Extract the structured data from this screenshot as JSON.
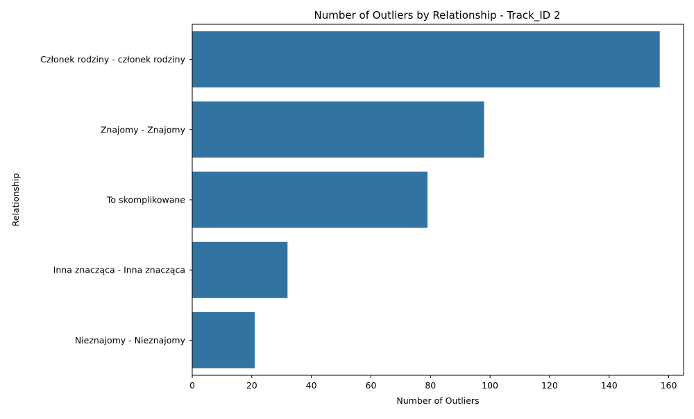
{
  "chart_data": {
    "type": "bar",
    "orientation": "horizontal",
    "title": "Number of Outliers by Relationship - Track_ID 2",
    "xlabel": "Number of Outliers",
    "ylabel": "Relationship",
    "categories": [
      "Członek rodziny - członek rodziny",
      "Znajomy - Znajomy",
      "To skomplikowane",
      "Inna znacząca - Inna znacząca",
      "Nieznajomy - Nieznajomy"
    ],
    "values": [
      157,
      98,
      79,
      32,
      21
    ],
    "xlim": [
      0,
      165
    ],
    "xticks": [
      "0",
      "20",
      "40",
      "60",
      "80",
      "100",
      "120",
      "140",
      "160"
    ],
    "bar_color": "#3274a1",
    "grid": false,
    "legend": "none"
  }
}
